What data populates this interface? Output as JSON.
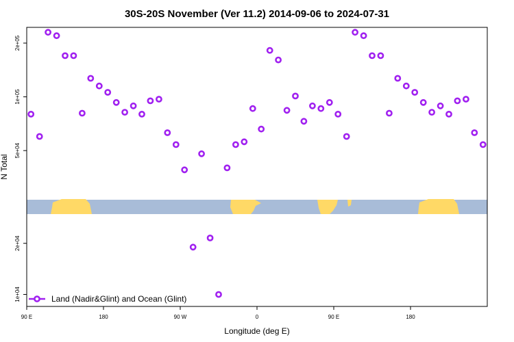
{
  "chart_data": {
    "type": "scatter",
    "title": "30S-20S November (Ver 11.2)   2014-09-06 to 2024-07-31",
    "xlabel": "Longitude (deg E)",
    "ylabel": "N Total",
    "y_scale": "log",
    "xlim": [
      -90,
      180
    ],
    "ylim": [
      8500,
      30000
    ],
    "x_ticks": [
      {
        "value": -90,
        "label": "90 E"
      },
      {
        "value": -45,
        "label": "180"
      },
      {
        "value": 0,
        "label": "90 W"
      },
      {
        "value": 45,
        "label": "0"
      },
      {
        "value": 90,
        "label": "90 E"
      },
      {
        "value": 135,
        "label": "180"
      }
    ],
    "y_ticks": [
      {
        "value": 10000,
        "label": "1e+04"
      },
      {
        "value": 20000,
        "label": "2e+04"
      },
      {
        "value": 50000,
        "label": "5e+04"
      },
      {
        "value": 100000,
        "label": "1e+05"
      },
      {
        "value": 200000,
        "label": "2e+05"
      }
    ],
    "legend": {
      "position": "bottom-left",
      "entries": [
        "Land (Nadir&Glint) and Ocean (Glint)"
      ]
    },
    "series_color": "#a020f0",
    "land_color": "#ffd966",
    "ocean_color": "#a8bcd8",
    "series": [
      {
        "name": "Land (Nadir&Glint) and Ocean (Glint)",
        "x": [
          -87.5,
          -82.5,
          -77.5,
          -72.5,
          -67.5,
          -62.5,
          -57.5,
          -52.5,
          -47.5,
          -42.5,
          -37.5,
          -32.5,
          -27.5,
          -22.5,
          -17.5,
          -12.5,
          -7.5,
          -2.5,
          2.5,
          7.5,
          12.5,
          17.5,
          22.5,
          27.5,
          32.5,
          37.5,
          42.5,
          47.5,
          52.5,
          57.5,
          62.5,
          67.5,
          72.5,
          77.5,
          82.5,
          87.5,
          92.5,
          97.5,
          102.5,
          107.5,
          112.5,
          117.5,
          122.5,
          127.5,
          132.5,
          137.5,
          142.5,
          147.5,
          152.5,
          157.5,
          162.5,
          167.5,
          172.5,
          177.5
        ],
        "y": [
          80000,
          60000,
          230000,
          220000,
          170000,
          170000,
          81000,
          127000,
          115000,
          106000,
          93000,
          82000,
          89000,
          80000,
          95000,
          97000,
          63000,
          54000,
          39000,
          19000,
          48000,
          21500,
          10000,
          40000,
          54000,
          56000,
          86000,
          66000,
          182000,
          161000,
          84000,
          101000,
          73000,
          89000,
          86000,
          93000,
          80000,
          60000,
          230000,
          220000,
          170000,
          170000,
          81000,
          127000,
          115000,
          106000,
          93000,
          82000,
          89000,
          80000,
          95000,
          97000,
          63000,
          54000
        ]
      }
    ]
  }
}
